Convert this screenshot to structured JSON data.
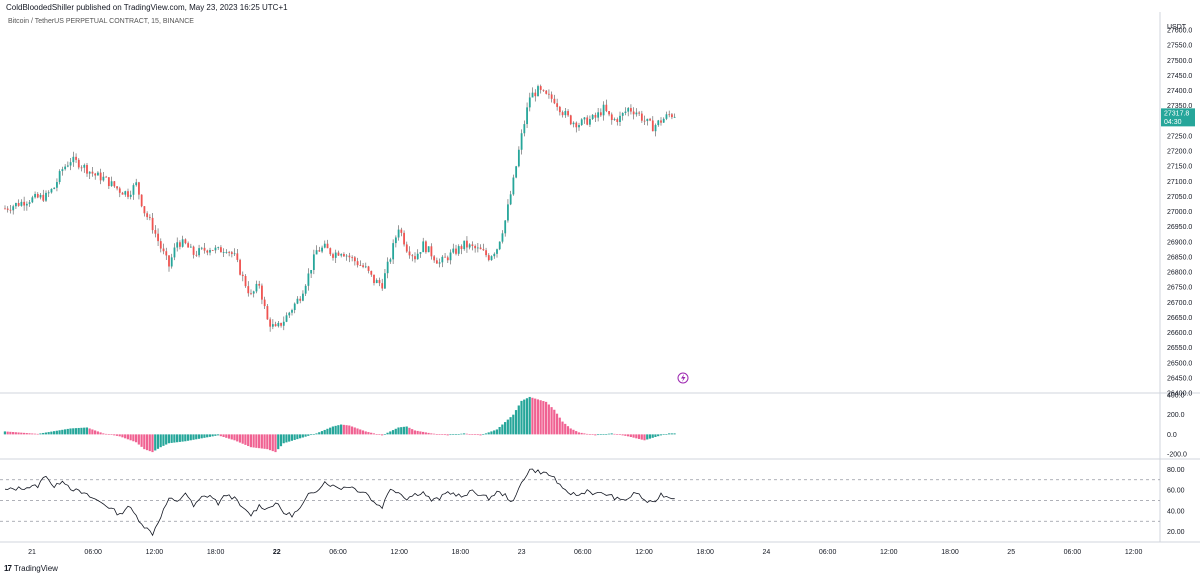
{
  "header": {
    "published": "ColdBloodedShiller published on TradingView.com, May 23, 2023 16:25 UTC+1",
    "symbol": "Bitcoin / TetherUS PERPETUAL CONTRACT, 15, BINANCE"
  },
  "footer": {
    "logo_mark": "17",
    "logo_text": "TradingView"
  },
  "colors": {
    "up": "#26a69a",
    "down": "#ef5350",
    "hist_up": "#26a69a",
    "hist_down": "#f06292",
    "line": "#131722",
    "price_badge": "#26a69a",
    "grid": "#e0e3eb",
    "text": "#131722"
  },
  "chart_data": [
    {
      "type": "candlestick",
      "currency_label": "USDT",
      "ylim": [
        26400,
        27600
      ],
      "y_ticks": [
        26400,
        26450,
        26500,
        26550,
        26600,
        26650,
        26700,
        26750,
        26800,
        26850,
        26900,
        26950,
        27000,
        27050,
        27100,
        27150,
        27200,
        27250,
        27300,
        27350,
        27400,
        27450,
        27500,
        27550,
        27600
      ],
      "last_price": "27317.8",
      "countdown": "04:30",
      "x_ticks": [
        "21",
        "06:00",
        "12:00",
        "18:00",
        "22",
        "06:00",
        "12:00",
        "18:00",
        "23",
        "06:00",
        "12:00",
        "18:00",
        "24",
        "06:00",
        "12:00",
        "18:00",
        "25",
        "06:00",
        "12:00"
      ],
      "close_path": [
        [
          0,
          27010
        ],
        [
          3,
          27040
        ],
        [
          5,
          27050
        ],
        [
          6,
          27080
        ],
        [
          7,
          27140
        ],
        [
          8,
          27170
        ],
        [
          9,
          27160
        ],
        [
          10,
          27140
        ],
        [
          11,
          27120
        ],
        [
          12,
          27110
        ],
        [
          13,
          27090
        ],
        [
          14,
          27070
        ],
        [
          15,
          27060
        ],
        [
          16,
          27090
        ],
        [
          17,
          27000
        ],
        [
          18,
          26950
        ],
        [
          19,
          26880
        ],
        [
          20,
          26820
        ],
        [
          21,
          26900
        ],
        [
          22,
          26890
        ],
        [
          23,
          26860
        ],
        [
          24,
          26870
        ],
        [
          25,
          26880
        ],
        [
          26,
          26870
        ],
        [
          27,
          26880
        ],
        [
          28,
          26850
        ],
        [
          29,
          26780
        ],
        [
          30,
          26720
        ],
        [
          31,
          26760
        ],
        [
          32,
          26640
        ],
        [
          33,
          26610
        ],
        [
          34,
          26640
        ],
        [
          35,
          26680
        ],
        [
          36,
          26720
        ],
        [
          37,
          26790
        ],
        [
          38,
          26870
        ],
        [
          39,
          26880
        ],
        [
          40,
          26860
        ],
        [
          41,
          26870
        ],
        [
          42,
          26850
        ],
        [
          43,
          26830
        ],
        [
          44,
          26810
        ],
        [
          45,
          26770
        ],
        [
          46,
          26760
        ],
        [
          47,
          26850
        ],
        [
          48,
          26950
        ],
        [
          49,
          26880
        ],
        [
          50,
          26850
        ],
        [
          51,
          26890
        ],
        [
          52,
          26860
        ],
        [
          53,
          26830
        ],
        [
          54,
          26850
        ],
        [
          55,
          26870
        ],
        [
          56,
          26890
        ],
        [
          57,
          26880
        ],
        [
          58,
          26870
        ],
        [
          59,
          26850
        ],
        [
          60,
          26880
        ],
        [
          61,
          26970
        ],
        [
          62,
          27100
        ],
        [
          63,
          27250
        ],
        [
          64,
          27380
        ],
        [
          65,
          27400
        ],
        [
          66,
          27380
        ],
        [
          67,
          27370
        ],
        [
          68,
          27330
        ],
        [
          69,
          27300
        ],
        [
          70,
          27290
        ],
        [
          71,
          27300
        ],
        [
          72,
          27310
        ],
        [
          73,
          27340
        ],
        [
          74,
          27300
        ],
        [
          75,
          27310
        ],
        [
          76,
          27340
        ],
        [
          77,
          27330
        ],
        [
          78,
          27300
        ],
        [
          79,
          27280
        ],
        [
          80,
          27300
        ],
        [
          81,
          27320
        ]
      ]
    },
    {
      "type": "bar",
      "indicator": "histogram",
      "ylim": [
        -250,
        420
      ],
      "y_ticks": [
        "400.0",
        "200.0",
        "0.0",
        "-200.0"
      ],
      "path": [
        [
          0,
          30
        ],
        [
          4,
          5
        ],
        [
          8,
          60
        ],
        [
          10,
          70
        ],
        [
          12,
          10
        ],
        [
          14,
          -20
        ],
        [
          16,
          -80
        ],
        [
          17,
          -150
        ],
        [
          18,
          -180
        ],
        [
          19,
          -130
        ],
        [
          20,
          -90
        ],
        [
          22,
          -70
        ],
        [
          24,
          -40
        ],
        [
          26,
          -10
        ],
        [
          28,
          -60
        ],
        [
          30,
          -130
        ],
        [
          32,
          -150
        ],
        [
          33,
          -180
        ],
        [
          34,
          -90
        ],
        [
          36,
          -40
        ],
        [
          38,
          10
        ],
        [
          40,
          80
        ],
        [
          41,
          100
        ],
        [
          42,
          90
        ],
        [
          44,
          30
        ],
        [
          46,
          -10
        ],
        [
          48,
          70
        ],
        [
          49,
          80
        ],
        [
          50,
          40
        ],
        [
          52,
          10
        ],
        [
          54,
          -10
        ],
        [
          56,
          10
        ],
        [
          58,
          -10
        ],
        [
          60,
          50
        ],
        [
          62,
          200
        ],
        [
          63,
          340
        ],
        [
          64,
          380
        ],
        [
          66,
          330
        ],
        [
          67,
          250
        ],
        [
          68,
          130
        ],
        [
          69,
          60
        ],
        [
          70,
          20
        ],
        [
          72,
          -10
        ],
        [
          74,
          10
        ],
        [
          76,
          -20
        ],
        [
          78,
          -60
        ],
        [
          80,
          -10
        ],
        [
          81,
          10
        ]
      ]
    },
    {
      "type": "line",
      "indicator": "oscillator",
      "ylim": [
        10,
        90
      ],
      "y_ticks": [
        "80.00",
        "60.00",
        "40.00",
        "20.00"
      ],
      "bands": [
        70,
        50,
        30
      ],
      "path": [
        [
          0,
          60
        ],
        [
          2,
          62
        ],
        [
          4,
          64
        ],
        [
          5,
          75
        ],
        [
          6,
          62
        ],
        [
          7,
          70
        ],
        [
          8,
          62
        ],
        [
          10,
          55
        ],
        [
          12,
          47
        ],
        [
          13,
          42
        ],
        [
          14,
          36
        ],
        [
          15,
          45
        ],
        [
          16,
          35
        ],
        [
          17,
          25
        ],
        [
          18,
          18
        ],
        [
          19,
          35
        ],
        [
          20,
          52
        ],
        [
          21,
          48
        ],
        [
          22,
          58
        ],
        [
          23,
          44
        ],
        [
          24,
          53
        ],
        [
          25,
          55
        ],
        [
          26,
          47
        ],
        [
          27,
          56
        ],
        [
          28,
          52
        ],
        [
          29,
          42
        ],
        [
          30,
          36
        ],
        [
          31,
          45
        ],
        [
          32,
          42
        ],
        [
          33,
          48
        ],
        [
          34,
          38
        ],
        [
          35,
          36
        ],
        [
          36,
          42
        ],
        [
          37,
          55
        ],
        [
          38,
          60
        ],
        [
          39,
          68
        ],
        [
          40,
          64
        ],
        [
          41,
          62
        ],
        [
          42,
          64
        ],
        [
          43,
          60
        ],
        [
          44,
          58
        ],
        [
          45,
          48
        ],
        [
          46,
          44
        ],
        [
          47,
          62
        ],
        [
          48,
          58
        ],
        [
          49,
          52
        ],
        [
          50,
          56
        ],
        [
          51,
          58
        ],
        [
          52,
          50
        ],
        [
          53,
          52
        ],
        [
          54,
          58
        ],
        [
          55,
          56
        ],
        [
          56,
          53
        ],
        [
          57,
          60
        ],
        [
          58,
          55
        ],
        [
          59,
          52
        ],
        [
          60,
          58
        ],
        [
          61,
          55
        ],
        [
          62,
          48
        ],
        [
          63,
          68
        ],
        [
          64,
          80
        ],
        [
          65,
          78
        ],
        [
          66,
          76
        ],
        [
          67,
          72
        ],
        [
          68,
          60
        ],
        [
          69,
          57
        ],
        [
          70,
          55
        ],
        [
          71,
          60
        ],
        [
          72,
          56
        ],
        [
          73,
          57
        ],
        [
          74,
          54
        ],
        [
          75,
          50
        ],
        [
          76,
          52
        ],
        [
          77,
          58
        ],
        [
          78,
          50
        ],
        [
          79,
          47
        ],
        [
          80,
          56
        ],
        [
          81,
          53
        ]
      ]
    }
  ]
}
